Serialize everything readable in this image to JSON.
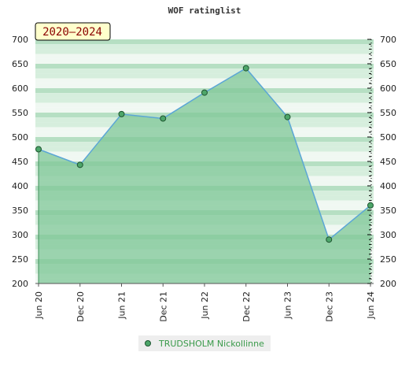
{
  "chart_data": {
    "type": "area",
    "title": "WOF ratinglist",
    "badge": "2020–2024",
    "categories": [
      "Jun 20",
      "Dec 20",
      "Jun 21",
      "Dec 21",
      "Jun 22",
      "Dec 22",
      "Jun 23",
      "Dec 23",
      "Jun 24"
    ],
    "series": [
      {
        "name": "TRUDSHOLM Nickollinne",
        "values": [
          475,
          443,
          547,
          538,
          591,
          641,
          541,
          290,
          360
        ]
      }
    ],
    "y_ticks": [
      200,
      250,
      300,
      350,
      400,
      450,
      500,
      550,
      600,
      650,
      700
    ],
    "ylim": [
      200,
      700
    ],
    "grid": true,
    "legend_position": "bottom-center",
    "colors": {
      "line": "#5ba6d6",
      "area": "#7fc797",
      "marker": "#4da66a",
      "band_dark": "#b6dfc3",
      "band_mid": "#d6eedd",
      "band_light": "#f0f8f2",
      "legend_text": "#3a9a4a",
      "badge_bg": "#ffffcc",
      "badge_text": "#8b0000"
    }
  }
}
